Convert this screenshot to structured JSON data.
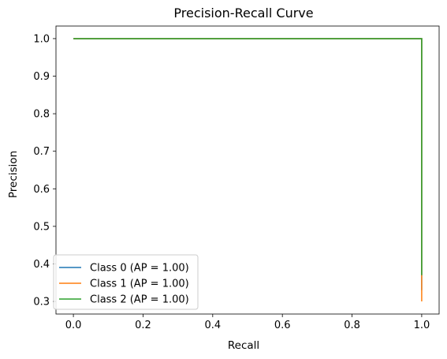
{
  "chart_data": {
    "type": "line",
    "title": "Precision-Recall Curve",
    "xlabel": "Recall",
    "ylabel": "Precision",
    "xlim": [
      -0.05,
      1.05
    ],
    "ylim": [
      0.2665,
      1.0335
    ],
    "xticks": [
      0.0,
      0.2,
      0.4,
      0.6,
      0.8,
      1.0
    ],
    "xtick_labels": [
      "0.0",
      "0.2",
      "0.4",
      "0.6",
      "0.8",
      "1.0"
    ],
    "yticks": [
      0.3,
      0.4,
      0.5,
      0.6,
      0.7,
      0.8,
      0.9,
      1.0
    ],
    "ytick_labels": [
      "0.3",
      "0.4",
      "0.5",
      "0.6",
      "0.7",
      "0.8",
      "0.9",
      "1.0"
    ],
    "grid": false,
    "legend_position": "lower-left",
    "series": [
      {
        "name": "Class 0 (AP = 1.00)",
        "color": "#1f77b4",
        "recall": [
          0.0,
          1.0,
          1.0
        ],
        "precision": [
          1.0,
          1.0,
          0.33
        ]
      },
      {
        "name": "Class 1 (AP = 1.00)",
        "color": "#ff7f0e",
        "recall": [
          0.0,
          1.0,
          1.0
        ],
        "precision": [
          1.0,
          1.0,
          0.3
        ]
      },
      {
        "name": "Class 2 (AP = 1.00)",
        "color": "#2ca02c",
        "recall": [
          0.0,
          1.0,
          1.0
        ],
        "precision": [
          1.0,
          1.0,
          0.37
        ]
      }
    ]
  }
}
